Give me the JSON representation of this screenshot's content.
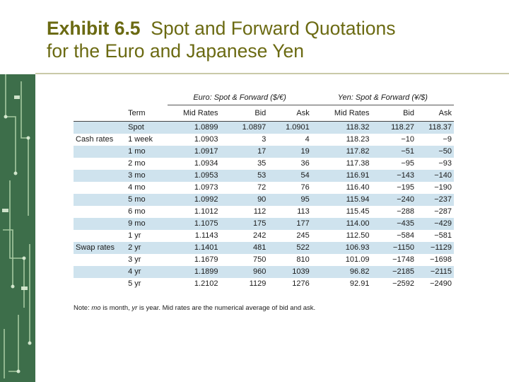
{
  "title": {
    "exhibit": "Exhibit 6.5",
    "text_line1": "Spot and Forward Quotations",
    "text_line2": "for the Euro and Japanese Yen"
  },
  "colors": {
    "title": "#6b6a12",
    "stripe": "#cfe3ee",
    "side_strip": "#3d6e4a"
  },
  "table": {
    "group_headers": {
      "euro": "Euro: Spot & Forward ($/€)",
      "yen": "Yen: Spot & Forward (¥/$)"
    },
    "columns": [
      "Term",
      "Mid Rates",
      "Bid",
      "Ask",
      "Mid Rates",
      "Bid",
      "Ask"
    ],
    "rows": [
      {
        "cat": "",
        "term": "Spot",
        "e_mid": "1.0899",
        "e_bid": "1.0897",
        "e_ask": "1.0901",
        "y_mid": "118.32",
        "y_bid": "118.27",
        "y_ask": "118.37"
      },
      {
        "cat": "Cash rates",
        "term": "1 week",
        "e_mid": "1.0903",
        "e_bid": "3",
        "e_ask": "4",
        "y_mid": "118.23",
        "y_bid": "−10",
        "y_ask": "−9"
      },
      {
        "cat": "",
        "term": "1 mo",
        "e_mid": "1.0917",
        "e_bid": "17",
        "e_ask": "19",
        "y_mid": "117.82",
        "y_bid": "−51",
        "y_ask": "−50"
      },
      {
        "cat": "",
        "term": "2 mo",
        "e_mid": "1.0934",
        "e_bid": "35",
        "e_ask": "36",
        "y_mid": "117.38",
        "y_bid": "−95",
        "y_ask": "−93"
      },
      {
        "cat": "",
        "term": "3 mo",
        "e_mid": "1.0953",
        "e_bid": "53",
        "e_ask": "54",
        "y_mid": "116.91",
        "y_bid": "−143",
        "y_ask": "−140"
      },
      {
        "cat": "",
        "term": "4 mo",
        "e_mid": "1.0973",
        "e_bid": "72",
        "e_ask": "76",
        "y_mid": "116.40",
        "y_bid": "−195",
        "y_ask": "−190"
      },
      {
        "cat": "",
        "term": "5 mo",
        "e_mid": "1.0992",
        "e_bid": "90",
        "e_ask": "95",
        "y_mid": "115.94",
        "y_bid": "−240",
        "y_ask": "−237"
      },
      {
        "cat": "",
        "term": "6 mo",
        "e_mid": "1.1012",
        "e_bid": "112",
        "e_ask": "113",
        "y_mid": "115.45",
        "y_bid": "−288",
        "y_ask": "−287"
      },
      {
        "cat": "",
        "term": "9 mo",
        "e_mid": "1.1075",
        "e_bid": "175",
        "e_ask": "177",
        "y_mid": "114.00",
        "y_bid": "−435",
        "y_ask": "−429"
      },
      {
        "cat": "",
        "term": "1 yr",
        "e_mid": "1.1143",
        "e_bid": "242",
        "e_ask": "245",
        "y_mid": "112.50",
        "y_bid": "−584",
        "y_ask": "−581"
      },
      {
        "cat": "Swap rates",
        "term": "2 yr",
        "e_mid": "1.1401",
        "e_bid": "481",
        "e_ask": "522",
        "y_mid": "106.93",
        "y_bid": "−1150",
        "y_ask": "−1129"
      },
      {
        "cat": "",
        "term": "3 yr",
        "e_mid": "1.1679",
        "e_bid": "750",
        "e_ask": "810",
        "y_mid": "101.09",
        "y_bid": "−1748",
        "y_ask": "−1698"
      },
      {
        "cat": "",
        "term": "4 yr",
        "e_mid": "1.1899",
        "e_bid": "960",
        "e_ask": "1039",
        "y_mid": "96.82",
        "y_bid": "−2185",
        "y_ask": "−2115"
      },
      {
        "cat": "",
        "term": "5 yr",
        "e_mid": "1.2102",
        "e_bid": "1129",
        "e_ask": "1276",
        "y_mid": "92.91",
        "y_bid": "−2592",
        "y_ask": "−2490"
      }
    ]
  },
  "note": {
    "prefix": "Note: ",
    "mo": "mo",
    "mid1": " is month, ",
    "yr": "yr",
    "mid2": " is year. Mid rates are the numerical average of bid and ask."
  }
}
